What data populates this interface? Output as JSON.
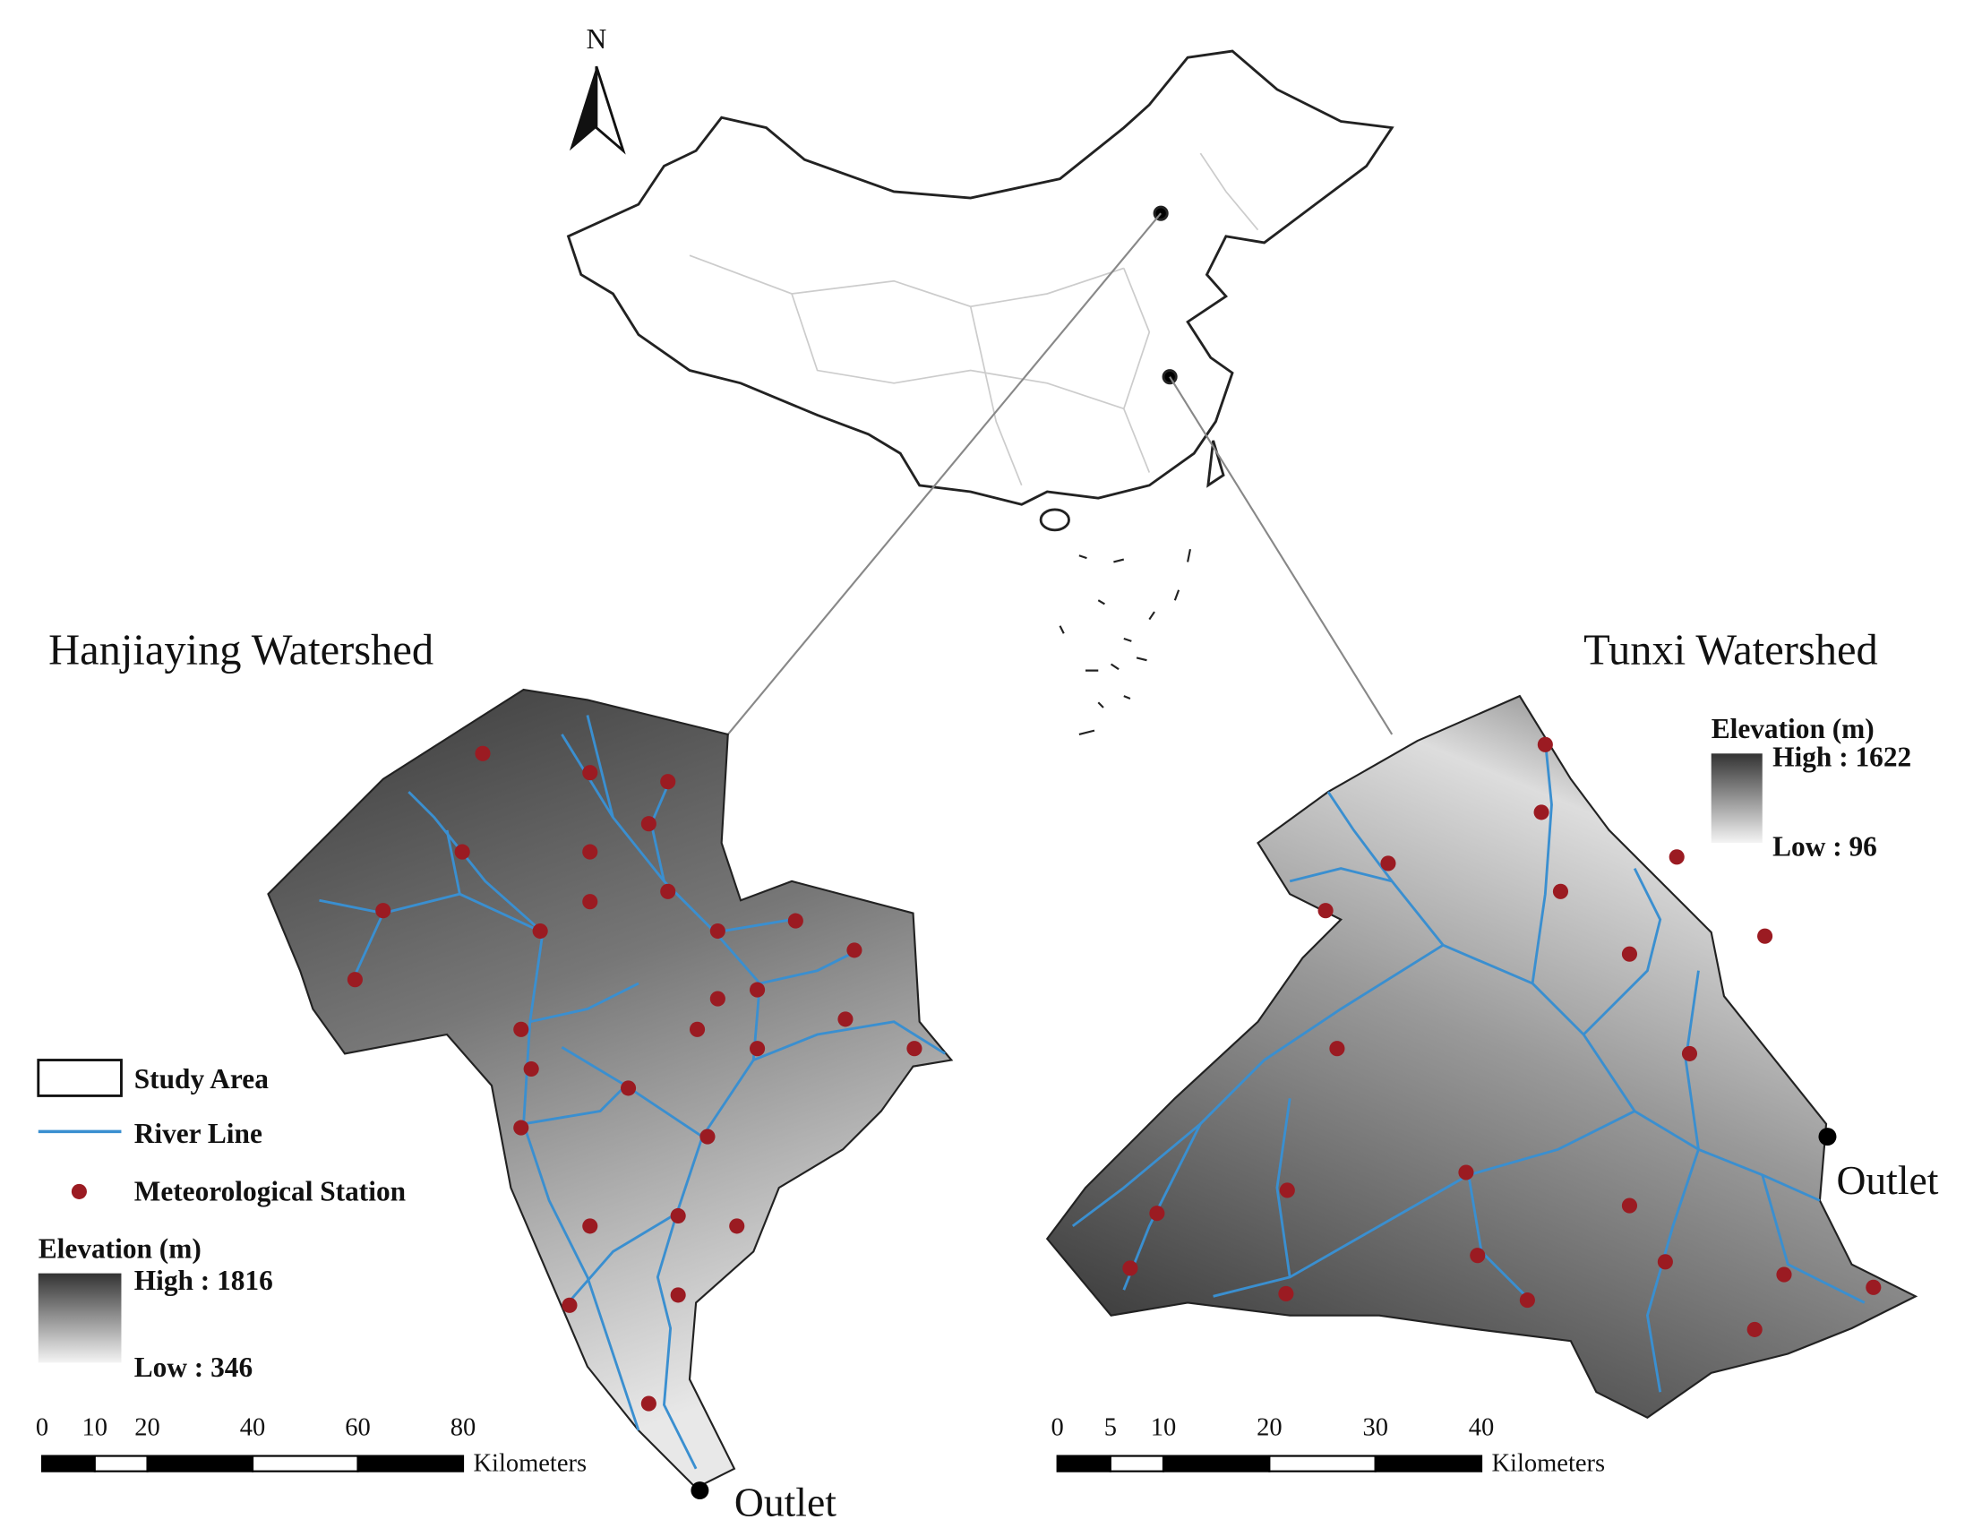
{
  "north_label": "N",
  "watersheds": [
    {
      "title": "Hanjiaying Watershed",
      "elevation": {
        "title": "Elevation (m)",
        "high": "High : 1816",
        "low": "Low : 346"
      },
      "scale": {
        "ticks": [
          0,
          10,
          20,
          40,
          60,
          80
        ],
        "unit": "Kilometers"
      },
      "outlet": "Outlet"
    },
    {
      "title": "Tunxi Watershed",
      "elevation": {
        "title": "Elevation (m)",
        "high": "High : 1622",
        "low": "Low : 96"
      },
      "scale": {
        "ticks": [
          0,
          5,
          10,
          20,
          30,
          40
        ],
        "unit": "Kilometers"
      },
      "outlet": "Outlet"
    }
  ],
  "legend": {
    "items": [
      "Study Area",
      "River Line",
      "Meteorological Station"
    ]
  }
}
